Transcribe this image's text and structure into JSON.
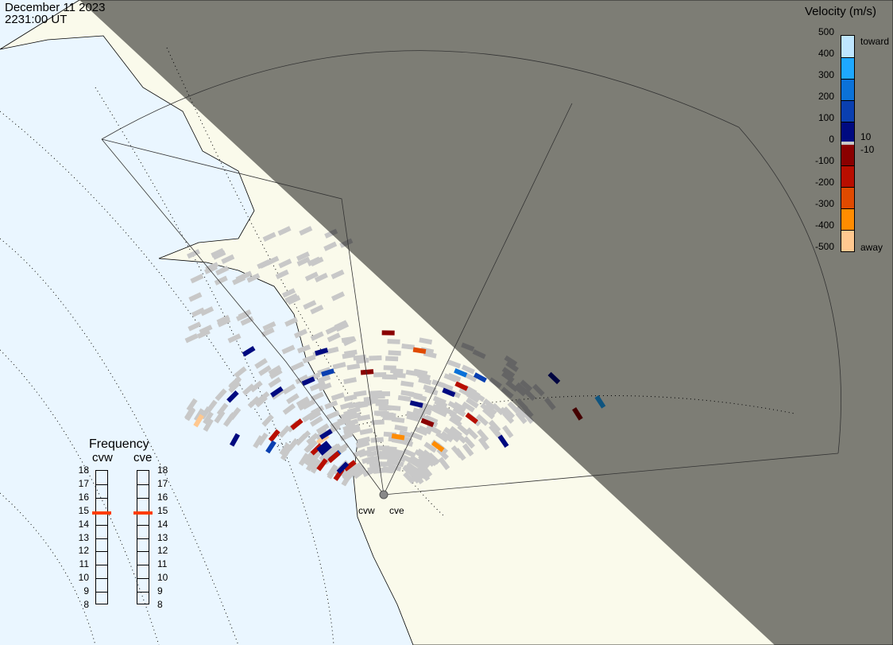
{
  "header": {
    "date": "December 11 2023",
    "time": "2231:00 UT"
  },
  "colorbar": {
    "title": "Velocity (m/s)",
    "ticks": [
      "500",
      "400",
      "300",
      "200",
      "100",
      "0",
      "-100",
      "-200",
      "-300",
      "-400",
      "-500"
    ],
    "colors": [
      "#bfe6ff",
      "#1ea8ff",
      "#0b72d8",
      "#0a3fb0",
      "#000a80",
      "#8a0000",
      "#b80e00",
      "#e04a00",
      "#ff8c00",
      "#ffc890"
    ],
    "ground_scatter_color": "#c8c8c8",
    "label_toward": "toward",
    "label_away": "away",
    "label_pos": "10",
    "label_neg": "-10"
  },
  "frequency": {
    "title": "Frequency",
    "radars": [
      {
        "name": "cvw",
        "value_mhz": 14.8
      },
      {
        "name": "cve",
        "value_mhz": 14.8
      }
    ],
    "ticks": [
      "18",
      "17",
      "16",
      "15",
      "14",
      "13",
      "12",
      "11",
      "10",
      "9",
      "8"
    ],
    "range": [
      8,
      18
    ],
    "marker_color": "#ff3c00"
  },
  "map": {
    "radar_labels": [
      "cvw",
      "cve"
    ],
    "ocean_color": "#eaf6ff",
    "land_color": "#fafaeb",
    "night_color": "#7a7a7a",
    "echo_velocities": [
      -120,
      -150,
      -80,
      60,
      90,
      -200,
      120,
      300,
      -350,
      40,
      -60,
      80,
      -110,
      150,
      -90,
      200,
      -420,
      60,
      -130,
      70,
      -400,
      100,
      -140,
      60,
      90,
      -120,
      50,
      -300,
      80,
      -100,
      70,
      -60,
      120,
      -180,
      90,
      40,
      -110,
      60
    ]
  }
}
